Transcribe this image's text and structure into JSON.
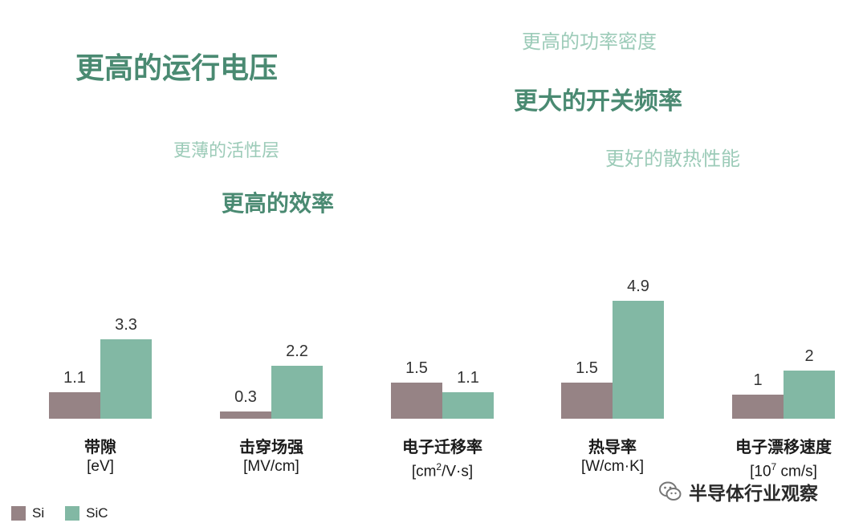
{
  "phrases": {
    "higher_voltage": "更高的运行电压",
    "higher_power_density": "更高的功率密度",
    "higher_switch_freq": "更大的开关频率",
    "thinner_active_layer": "更薄的活性层",
    "better_heat": "更好的散热性能",
    "higher_efficiency": "更高的效率"
  },
  "chart_data": {
    "type": "bar",
    "categories": [
      {
        "name": "带隙",
        "unit": "[eV]"
      },
      {
        "name": "击穿场强",
        "unit": "[MV/cm]"
      },
      {
        "name": "电子迁移率",
        "unit_pre": "[cm",
        "unit_sup": "2",
        "unit_post": "/V·s]"
      },
      {
        "name": "热导率",
        "unit": "[W/cm·K]"
      },
      {
        "name": "电子漂移速度",
        "unit_pre": "[10",
        "unit_sup": "7",
        "unit_post": " cm/s]"
      }
    ],
    "series": [
      {
        "name": "Si",
        "color": "#968385",
        "values": [
          1.1,
          0.3,
          1.5,
          1.5,
          1
        ],
        "labels": [
          "1.1",
          "0.3",
          "1.5",
          "1.5",
          "1"
        ]
      },
      {
        "name": "SiC",
        "color": "#82b8a4",
        "values": [
          3.3,
          2.2,
          1.1,
          4.9,
          2
        ],
        "labels": [
          "3.3",
          "2.2",
          "1.1",
          "4.9",
          "2"
        ]
      }
    ],
    "value_labels_shown": true,
    "axes_visible": false,
    "legend_position": "bottom-left"
  },
  "watermark": {
    "icon": "wechat-icon",
    "text": "半导体行业观察"
  }
}
